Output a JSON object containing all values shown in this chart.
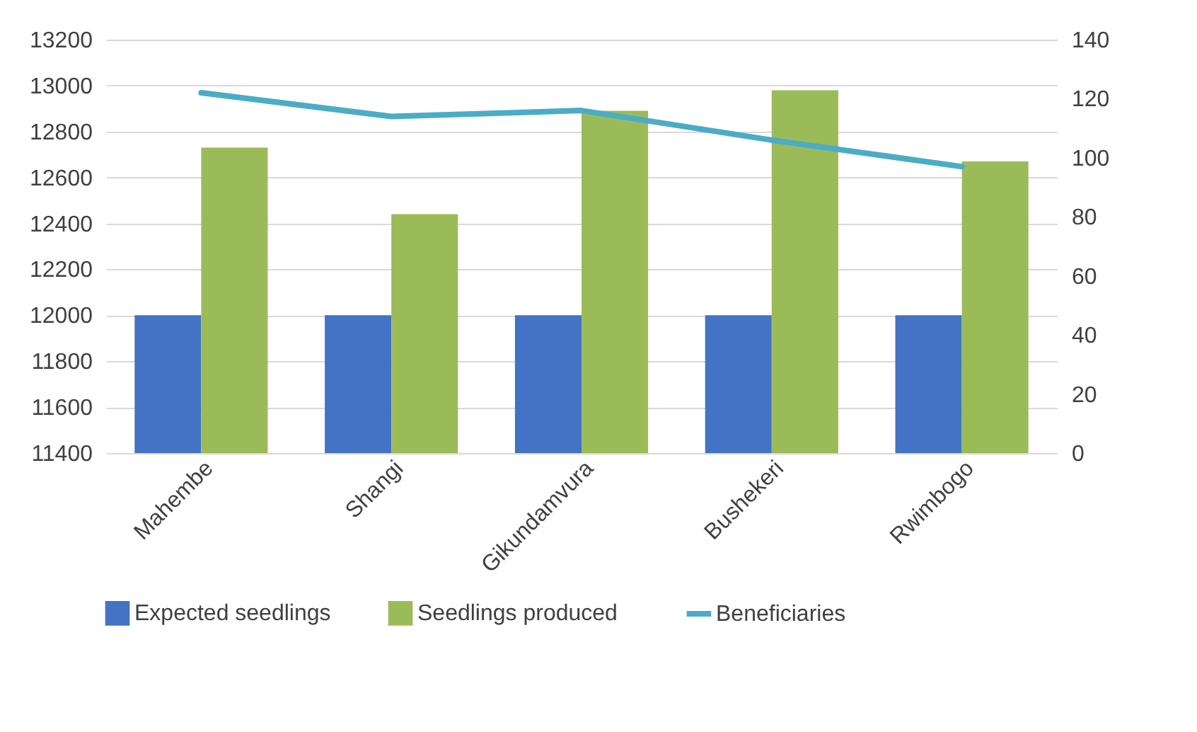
{
  "chart_data": {
    "type": "bar",
    "categories": [
      "Mahembe",
      "Shangi",
      "Gikundamvura",
      "Bushekeri",
      "Rwimbogo"
    ],
    "series": [
      {
        "name": "Expected seedlings",
        "color": "#4472c4",
        "values": [
          12000,
          12000,
          12000,
          12000,
          12000
        ]
      },
      {
        "name": "Seedlings produced",
        "color": "#9bbb59",
        "values": [
          12730,
          12440,
          12890,
          12980,
          12670
        ]
      },
      {
        "name": "Beneficiaries",
        "type": "line",
        "axis": "y2",
        "color": "#4bacc6",
        "values": [
          122,
          114,
          116,
          106,
          97
        ]
      }
    ],
    "ylim": [
      11400,
      13200
    ],
    "yticks": [
      11400,
      11600,
      11800,
      12000,
      12200,
      12400,
      12600,
      12800,
      13000,
      13200
    ],
    "y2lim": [
      0,
      140
    ],
    "y2ticks": [
      0,
      20,
      40,
      60,
      80,
      100,
      120,
      140
    ],
    "grid": "y",
    "legend": "bottom",
    "marker": "none",
    "line_style": "solid"
  }
}
